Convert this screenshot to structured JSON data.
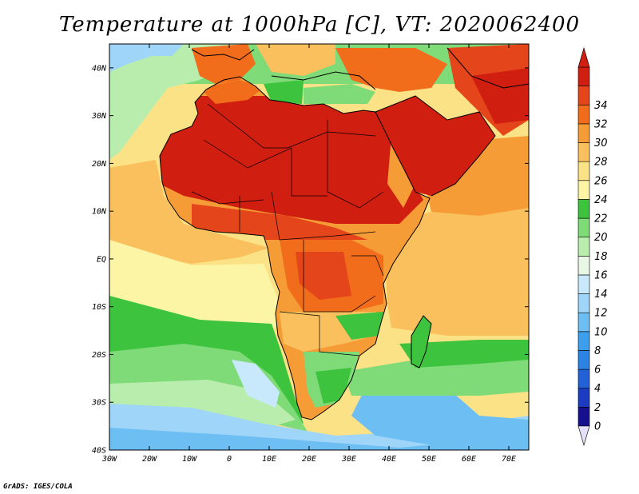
{
  "title": "Temperature at 1000hPa [C], VT: 2020062400",
  "credit": "GrADS: IGES/COLA",
  "map": {
    "projection": "latlon",
    "lon_range": [
      -30,
      75
    ],
    "lat_range": [
      -40,
      45
    ],
    "lat_ticks": [
      {
        "value": 40,
        "label": "40N"
      },
      {
        "value": 30,
        "label": "30N"
      },
      {
        "value": 20,
        "label": "20N"
      },
      {
        "value": 10,
        "label": "10N"
      },
      {
        "value": 0,
        "label": "EQ"
      },
      {
        "value": -10,
        "label": "10S"
      },
      {
        "value": -20,
        "label": "20S"
      },
      {
        "value": -30,
        "label": "30S"
      },
      {
        "value": -40,
        "label": "40S"
      }
    ],
    "lon_ticks": [
      {
        "value": -30,
        "label": "30W"
      },
      {
        "value": -20,
        "label": "20W"
      },
      {
        "value": -10,
        "label": "10W"
      },
      {
        "value": 0,
        "label": "0"
      },
      {
        "value": 10,
        "label": "10E"
      },
      {
        "value": 20,
        "label": "20E"
      },
      {
        "value": 30,
        "label": "30E"
      },
      {
        "value": 40,
        "label": "40E"
      },
      {
        "value": 50,
        "label": "50E"
      },
      {
        "value": 60,
        "label": "60E"
      },
      {
        "value": 70,
        "label": "70E"
      }
    ]
  },
  "colorbar": {
    "levels": [
      "0",
      "2",
      "4",
      "6",
      "8",
      "10",
      "12",
      "14",
      "16",
      "18",
      "20",
      "22",
      "24",
      "26",
      "28",
      "30",
      "32",
      "34"
    ],
    "colors": [
      "#160F8E",
      "#1B3CC1",
      "#2362D6",
      "#2C83E4",
      "#3C9EEC",
      "#6DBEF2",
      "#9ED5F8",
      "#C7E9FB",
      "#E8F8E4",
      "#B9EDAE",
      "#7FDB77",
      "#3DC33E",
      "#FBF5A5",
      "#FCE286",
      "#F9C05D",
      "#F69C36",
      "#F16C1B",
      "#E4451A",
      "#D01E10"
    ],
    "under_color": "#E4E0FA",
    "over_color": "#D01E10"
  }
}
